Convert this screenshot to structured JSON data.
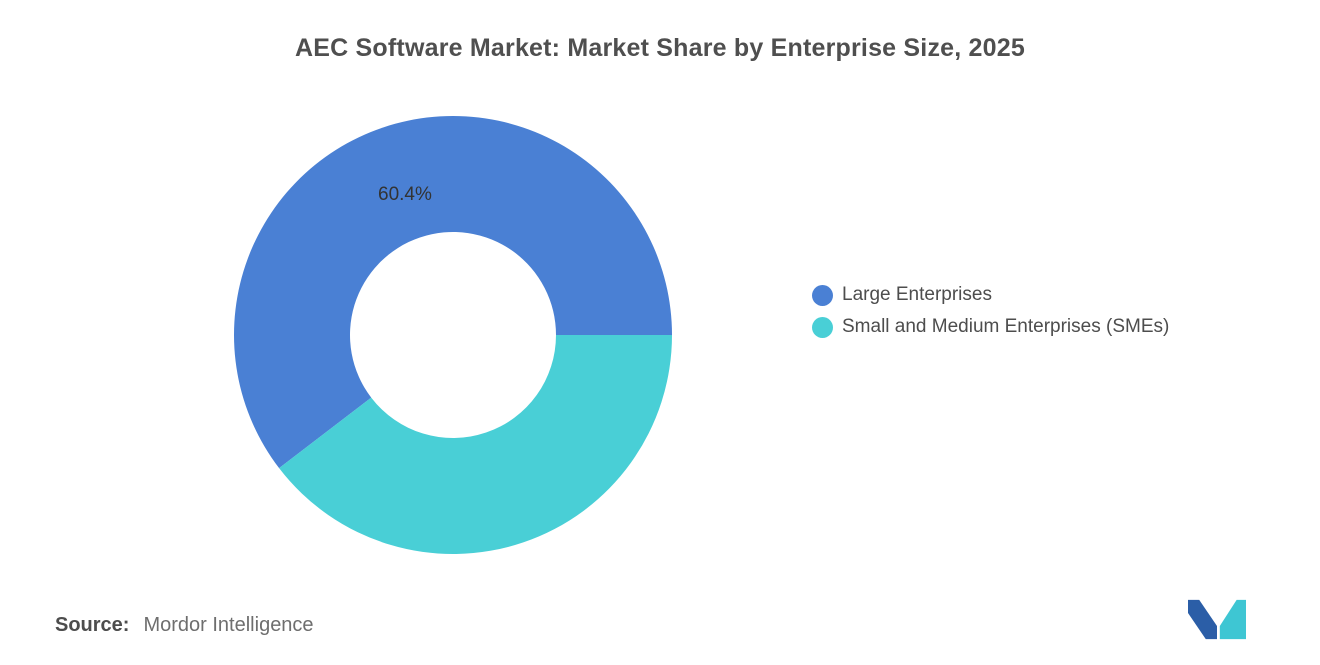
{
  "title": "AEC Software Market: Market Share by Enterprise Size, 2025",
  "chart_data": {
    "type": "pie",
    "subtype": "donut",
    "title": "AEC Software Market: Market Share by Enterprise Size, 2025",
    "segments": [
      {
        "label": "Large Enterprises",
        "value": 60.4,
        "color": "#4A80D4",
        "data_label": "60.4%"
      },
      {
        "label": "Small and Medium Enterprises (SMEs)",
        "value": 39.6,
        "color": "#49CFD6",
        "data_label": ""
      }
    ],
    "start_angle_deg": 142.56,
    "inner_radius_ratio": 0.47,
    "legend_position": "right",
    "background": "#ffffff"
  },
  "source": {
    "prefix": "Source:",
    "text": "Mordor Intelligence"
  },
  "logo": {
    "name": "mordor-intelligence-logo",
    "blue": "#2B5EA7",
    "teal": "#3EC6D3"
  }
}
